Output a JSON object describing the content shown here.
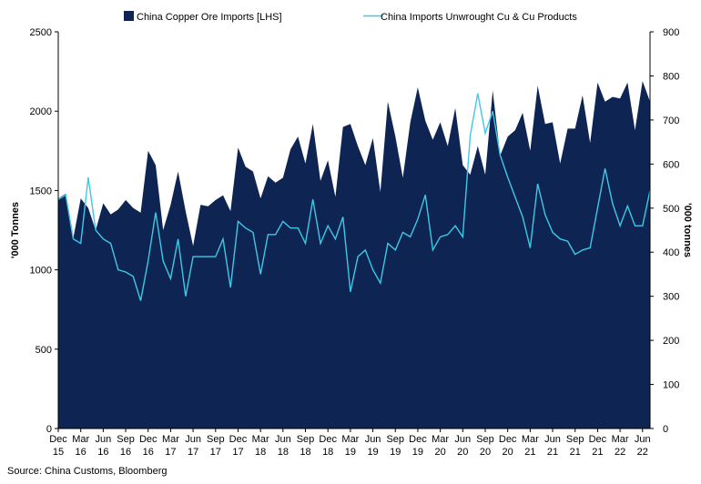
{
  "chart_data": {
    "type": "area",
    "title": "",
    "legend_position": "top",
    "grid": false,
    "x_labels": [
      {
        "month": "Dec",
        "year": "15"
      },
      {
        "month": "Mar",
        "year": "16"
      },
      {
        "month": "Jun",
        "year": "16"
      },
      {
        "month": "Sep",
        "year": "16"
      },
      {
        "month": "Dec",
        "year": "16"
      },
      {
        "month": "Mar",
        "year": "17"
      },
      {
        "month": "Jun",
        "year": "17"
      },
      {
        "month": "Sep",
        "year": "17"
      },
      {
        "month": "Dec",
        "year": "17"
      },
      {
        "month": "Mar",
        "year": "18"
      },
      {
        "month": "Jun",
        "year": "18"
      },
      {
        "month": "Sep",
        "year": "18"
      },
      {
        "month": "Dec",
        "year": "18"
      },
      {
        "month": "Mar",
        "year": "19"
      },
      {
        "month": "Jun",
        "year": "19"
      },
      {
        "month": "Sep",
        "year": "19"
      },
      {
        "month": "Dec",
        "year": "19"
      },
      {
        "month": "Mar",
        "year": "20"
      },
      {
        "month": "Jun",
        "year": "20"
      },
      {
        "month": "Sep",
        "year": "20"
      },
      {
        "month": "Dec",
        "year": "20"
      },
      {
        "month": "Mar",
        "year": "21"
      },
      {
        "month": "Jun",
        "year": "21"
      },
      {
        "month": "Sep",
        "year": "21"
      },
      {
        "month": "Dec",
        "year": "21"
      },
      {
        "month": "Mar",
        "year": "22"
      },
      {
        "month": "Jun",
        "year": "22"
      }
    ],
    "y_left": {
      "label": "'000 Tonnes",
      "min": 0,
      "max": 2500,
      "ticks": [
        "0",
        "500",
        "1000",
        "1500",
        "2000",
        "2500"
      ]
    },
    "y_right": {
      "label": "'000 tonnes",
      "min": 0,
      "max": 900,
      "ticks": [
        "0",
        "100",
        "200",
        "300",
        "400",
        "500",
        "600",
        "700",
        "800",
        "900"
      ]
    },
    "series": [
      {
        "name": "China Copper Ore Imports [LHS]",
        "axis": "left",
        "kind": "area",
        "color": "#0e2452",
        "values": [
          1450,
          1480,
          1200,
          1450,
          1390,
          1250,
          1420,
          1350,
          1380,
          1440,
          1390,
          1360,
          1750,
          1660,
          1250,
          1410,
          1620,
          1370,
          1150,
          1410,
          1400,
          1440,
          1470,
          1370,
          1770,
          1650,
          1620,
          1450,
          1590,
          1550,
          1580,
          1760,
          1840,
          1670,
          1920,
          1560,
          1690,
          1460,
          1900,
          1920,
          1780,
          1660,
          1830,
          1490,
          2060,
          1840,
          1580,
          1930,
          2150,
          1940,
          1820,
          1930,
          1780,
          2020,
          1660,
          1600,
          1780,
          1600,
          2130,
          1720,
          1840,
          1880,
          1990,
          1750,
          2160,
          1920,
          1930,
          1670,
          1890,
          1890,
          2100,
          1800,
          2180,
          2060,
          2090,
          2080,
          2180,
          1880,
          2190,
          2060
        ]
      },
      {
        "name": "China Imports Unwrought Cu & Cu Products",
        "axis": "right",
        "kind": "line",
        "color": "#3ec9e6",
        "values": [
          520,
          530,
          430,
          420,
          570,
          450,
          430,
          420,
          360,
          355,
          345,
          290,
          380,
          490,
          380,
          340,
          430,
          300,
          390,
          390,
          390,
          390,
          430,
          320,
          470,
          455,
          445,
          350,
          440,
          440,
          470,
          455,
          455,
          420,
          520,
          420,
          460,
          430,
          480,
          310,
          390,
          405,
          360,
          330,
          420,
          405,
          445,
          435,
          475,
          530,
          405,
          435,
          440,
          460,
          435,
          665,
          760,
          670,
          720,
          620,
          570,
          525,
          480,
          410,
          555,
          485,
          445,
          430,
          425,
          395,
          405,
          410,
          500,
          590,
          510,
          460,
          505,
          460,
          460,
          540
        ]
      }
    ]
  },
  "source_text": "Source: China Customs, Bloomberg"
}
